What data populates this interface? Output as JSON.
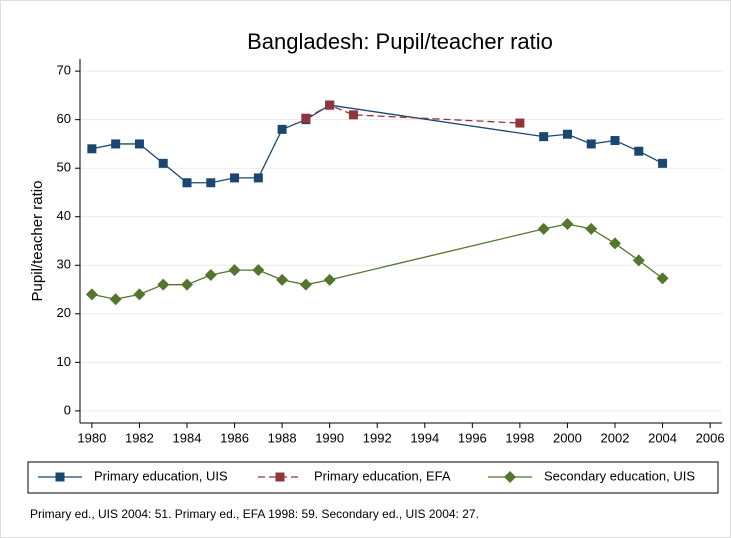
{
  "chart_data": {
    "type": "line",
    "title": "Bangladesh: Pupil/teacher ratio",
    "y_label": "Pupil/teacher ratio",
    "note": "Primary ed., UIS 2004: 51. Primary ed., EFA 1998: 59. Secondary ed., UIS 2004: 27.",
    "xlim": [
      1979.5,
      2006.5
    ],
    "xticks": [
      1980,
      1982,
      1984,
      1986,
      1988,
      1990,
      1992,
      1994,
      1996,
      1998,
      2000,
      2002,
      2004,
      2006
    ],
    "ylim": [
      -2.5,
      72.5
    ],
    "yticks": [
      0,
      10,
      20,
      30,
      40,
      50,
      60,
      70
    ],
    "grid": true,
    "series": [
      {
        "name": "Primary education, UIS",
        "color": "#1a476f",
        "marker": "square",
        "dash": false,
        "x": [
          1980,
          1981,
          1982,
          1983,
          1984,
          1985,
          1986,
          1987,
          1988,
          1989,
          1990,
          1999,
          2000,
          2001,
          2002,
          2003,
          2004
        ],
        "values": [
          54,
          55,
          55,
          51,
          47,
          47,
          48,
          48,
          58,
          60,
          63,
          56.5,
          57,
          55,
          55.7,
          53.5,
          51
        ]
      },
      {
        "name": "Primary education, EFA",
        "color": "#90353b",
        "marker": "square",
        "dash": true,
        "x": [
          1989,
          1990,
          1991,
          1998
        ],
        "values": [
          60.3,
          63,
          61,
          59.3
        ]
      },
      {
        "name": "Secondary education, UIS",
        "color": "#55752f",
        "marker": "diamond",
        "dash": false,
        "x": [
          1980,
          1981,
          1982,
          1983,
          1984,
          1985,
          1986,
          1987,
          1988,
          1989,
          1990,
          1999,
          2000,
          2001,
          2002,
          2003,
          2004
        ],
        "values": [
          24,
          23,
          24,
          26,
          26,
          28,
          29,
          29,
          27,
          26,
          27,
          37.5,
          38.5,
          37.5,
          34.5,
          31,
          27.3
        ]
      }
    ]
  }
}
